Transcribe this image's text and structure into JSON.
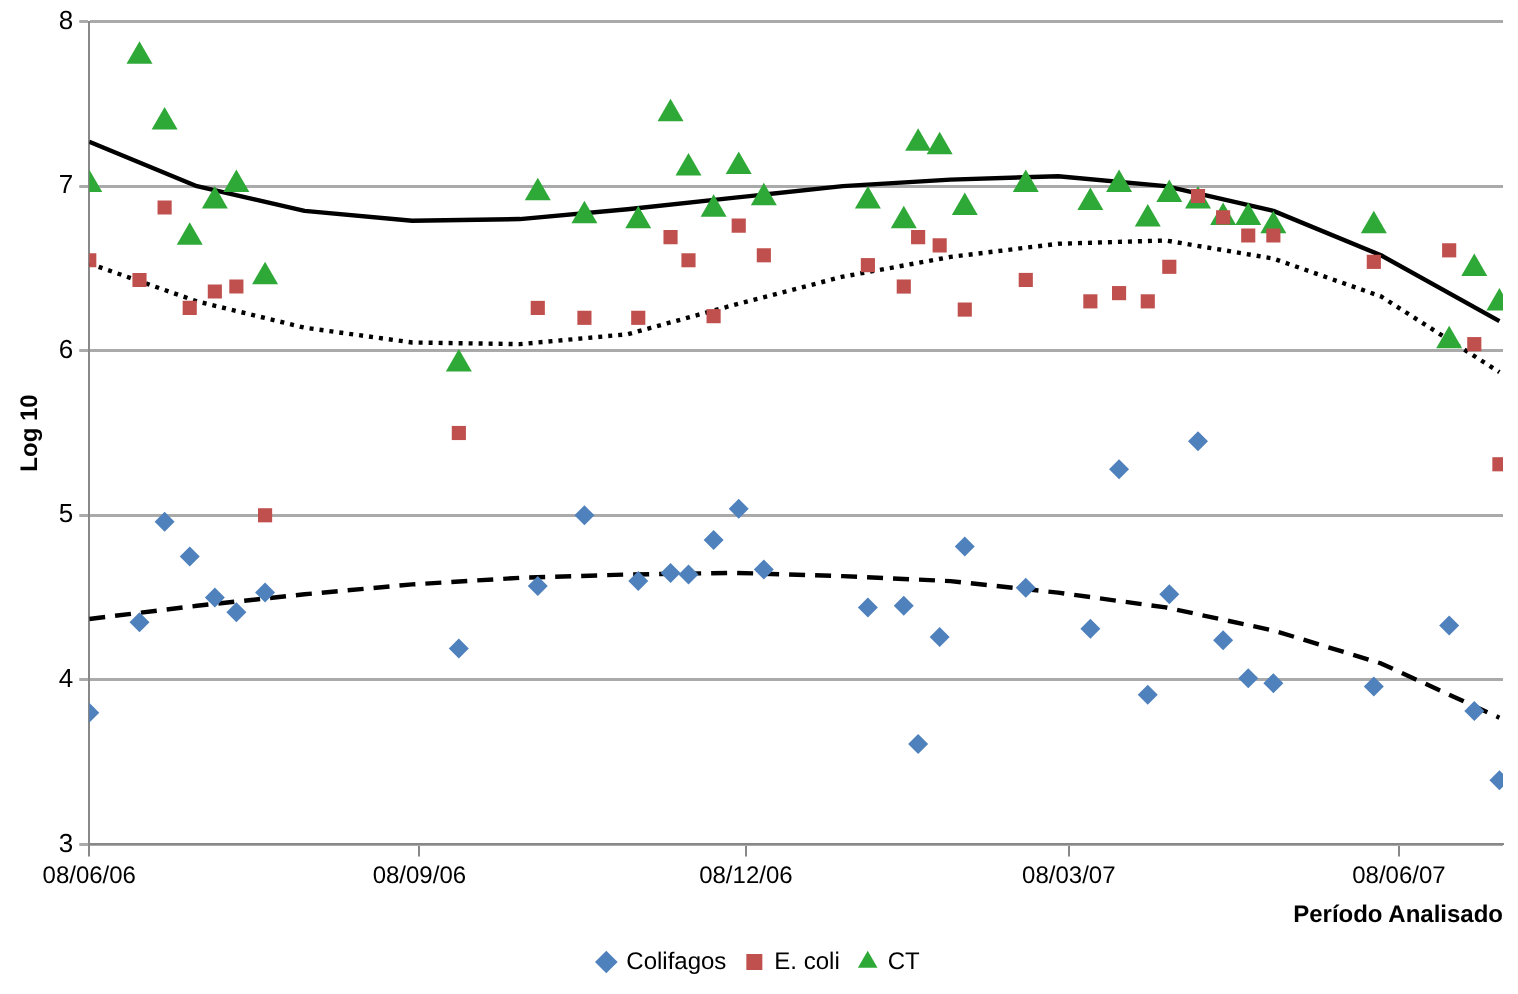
{
  "chart_data": {
    "type": "scatter",
    "xlabel": "Período Analisado",
    "ylabel": "Log 10",
    "x": [
      "2006-06-08",
      "2006-06-22",
      "2006-06-29",
      "2006-07-06",
      "2006-07-13",
      "2006-07-19",
      "2006-07-27",
      "2006-09-19",
      "2006-10-11",
      "2006-10-24",
      "2006-11-08",
      "2006-11-17",
      "2006-11-22",
      "2006-11-29",
      "2006-12-06",
      "2006-12-13",
      "2007-01-11",
      "2007-01-21",
      "2007-01-25",
      "2007-01-31",
      "2007-02-07",
      "2007-02-24",
      "2007-03-14",
      "2007-03-22",
      "2007-03-30",
      "2007-04-05",
      "2007-04-13",
      "2007-04-20",
      "2007-04-27",
      "2007-05-04",
      "2007-06-01",
      "2007-06-22",
      "2007-06-29",
      "2007-07-06"
    ],
    "series": [
      {
        "name": "Colifagos",
        "color": "#4f81bd",
        "marker": "diamond",
        "values": [
          3.8,
          4.35,
          4.96,
          4.75,
          4.5,
          4.41,
          4.53,
          4.19,
          4.57,
          5.0,
          4.6,
          4.65,
          4.64,
          4.85,
          5.04,
          4.67,
          4.44,
          4.45,
          3.61,
          4.26,
          4.81,
          4.56,
          4.31,
          5.28,
          3.91,
          4.52,
          5.45,
          4.24,
          4.01,
          3.98,
          3.96,
          4.33,
          3.81,
          3.39
        ]
      },
      {
        "name": "E. coli",
        "color": "#c0504d",
        "marker": "square",
        "values": [
          6.55,
          6.43,
          6.87,
          6.26,
          6.36,
          6.39,
          5.0,
          5.5,
          6.26,
          6.2,
          6.2,
          6.69,
          6.55,
          6.21,
          6.76,
          6.58,
          6.52,
          6.39,
          6.69,
          6.64,
          6.25,
          6.43,
          6.3,
          6.35,
          6.3,
          6.51,
          6.94,
          6.81,
          6.7,
          6.7,
          6.54,
          6.61,
          6.04,
          5.31
        ]
      },
      {
        "name": "CT",
        "color": "#2ea836",
        "marker": "triangle",
        "values": [
          7.01,
          7.79,
          7.39,
          6.69,
          6.91,
          7.01,
          6.45,
          5.92,
          6.96,
          6.82,
          6.79,
          7.44,
          7.11,
          6.86,
          7.12,
          6.93,
          6.91,
          6.79,
          7.26,
          7.24,
          6.87,
          7.01,
          6.9,
          7.01,
          6.8,
          6.95,
          6.91,
          6.81,
          6.81,
          6.76,
          6.76,
          6.06,
          6.5,
          6.29
        ]
      },
      {
        "type": "line",
        "color": "#000000",
        "line_style": "dashed",
        "marker": "none",
        "x": [
          "2006-06-08",
          "2006-07-08",
          "2006-08-07",
          "2006-09-06",
          "2006-10-06",
          "2006-11-05",
          "2006-12-05",
          "2007-01-04",
          "2007-02-03",
          "2007-03-05",
          "2007-04-04",
          "2007-05-04",
          "2007-06-03",
          "2007-07-06"
        ],
        "values": [
          4.37,
          4.45,
          4.52,
          4.58,
          4.62,
          4.64,
          4.65,
          4.63,
          4.6,
          4.53,
          4.44,
          4.3,
          4.1,
          3.77
        ]
      },
      {
        "type": "line",
        "color": "#000000",
        "line_style": "dotted",
        "marker": "none",
        "x": [
          "2006-06-08",
          "2006-07-08",
          "2006-08-07",
          "2006-09-06",
          "2006-10-06",
          "2006-11-05",
          "2006-12-05",
          "2007-01-04",
          "2007-02-03",
          "2007-03-05",
          "2007-04-04",
          "2007-05-04",
          "2007-06-03",
          "2007-07-06"
        ],
        "values": [
          6.53,
          6.3,
          6.14,
          6.05,
          6.04,
          6.1,
          6.28,
          6.45,
          6.57,
          6.65,
          6.67,
          6.56,
          6.33,
          5.87
        ]
      },
      {
        "type": "line",
        "color": "#000000",
        "line_style": "solid",
        "marker": "none",
        "x": [
          "2006-06-08",
          "2006-07-08",
          "2006-08-07",
          "2006-09-06",
          "2006-10-06",
          "2006-11-05",
          "2006-12-05",
          "2007-01-04",
          "2007-02-03",
          "2007-03-05",
          "2007-04-04",
          "2007-05-04",
          "2007-06-03",
          "2007-07-06"
        ],
        "values": [
          7.27,
          7.0,
          6.85,
          6.79,
          6.8,
          6.86,
          6.93,
          7.0,
          7.04,
          7.06,
          7.0,
          6.85,
          6.58,
          6.18
        ]
      }
    ],
    "xlim": [
      "2006-06-08",
      "2007-07-07"
    ],
    "xticks": [
      {
        "value": "2006-06-08",
        "label": "08/06/06"
      },
      {
        "value": "2006-09-08",
        "label": "08/09/06"
      },
      {
        "value": "2006-12-08",
        "label": "08/12/06"
      },
      {
        "value": "2007-03-08",
        "label": "08/03/07"
      },
      {
        "value": "2007-06-08",
        "label": "08/06/07"
      }
    ],
    "ylim": [
      3,
      8
    ],
    "yticks": [
      3,
      4,
      5,
      6,
      7,
      8
    ],
    "grid": "y",
    "legend": "bottom"
  }
}
